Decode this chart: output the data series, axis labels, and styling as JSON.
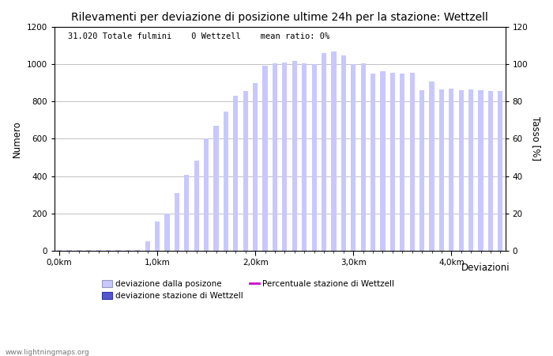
{
  "title": "Rilevamenti per deviazione di posizione ultime 24h per la stazione: Wettzell",
  "subtitle": "31.020 Totale fulmini    0 Wettzell    mean ratio: 0%",
  "xlabel": "Deviazioni",
  "ylabel_left": "Numero",
  "ylabel_right": "Tasso [%]",
  "watermark": "www.lightningmaps.org",
  "ylim_left": [
    0,
    1200
  ],
  "ylim_right": [
    0,
    120
  ],
  "yticks_left": [
    0,
    200,
    400,
    600,
    800,
    1000,
    1200
  ],
  "yticks_right": [
    0,
    20,
    40,
    60,
    80,
    100,
    120
  ],
  "xtick_labels": [
    "0,0km",
    "1,0km",
    "2,0km",
    "3,0km",
    "4,0km"
  ],
  "xtick_positions": [
    0,
    10,
    20,
    30,
    40
  ],
  "n_bars": 46,
  "bar_color": "#c8c8ff",
  "bar_color_station": "#5555cc",
  "line_color": "#cc00cc",
  "background_color": "#ffffff",
  "grid_color": "#aaaaaa",
  "bar_values": [
    3,
    3,
    3,
    3,
    3,
    3,
    3,
    3,
    3,
    50,
    155,
    200,
    310,
    405,
    485,
    600,
    670,
    745,
    830,
    855,
    900,
    995,
    1005,
    1010,
    1020,
    1005,
    1000,
    1060,
    1070,
    1050,
    1000,
    1005,
    950,
    965,
    955,
    950,
    955,
    860,
    910,
    865,
    870,
    860,
    865,
    860,
    855,
    855
  ],
  "legend_labels": [
    "deviazione dalla posizone",
    "deviazione stazione di Wettzell",
    "Percentuale stazione di Wettzell"
  ],
  "title_fontsize": 10,
  "tick_fontsize": 7.5,
  "label_fontsize": 8.5,
  "subtitle_fontsize": 7.5
}
